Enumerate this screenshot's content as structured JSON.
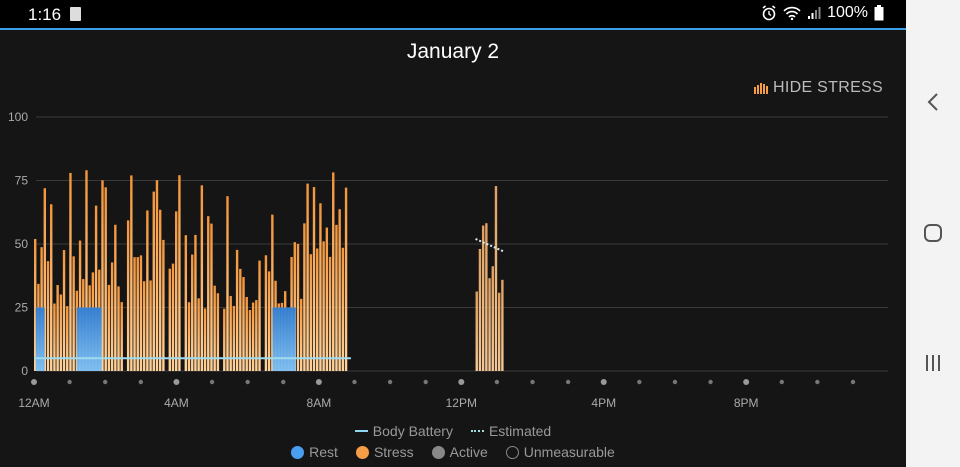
{
  "status_bar": {
    "time": "1:16",
    "battery": "100%"
  },
  "page": {
    "title": "January 2",
    "toggle_label": "HIDE STRESS"
  },
  "legend": {
    "row1": [
      {
        "label": "Body Battery",
        "color": "#8fd6f0",
        "style": "line"
      },
      {
        "label": "Estimated",
        "color": "#9be0e0",
        "style": "dotted"
      }
    ],
    "row2": [
      {
        "label": "Rest",
        "color": "#4a9ef0"
      },
      {
        "label": "Stress",
        "color": "#f59d47"
      },
      {
        "label": "Active",
        "color": "#888888"
      },
      {
        "label": "Unmeasurable",
        "color": "#151515"
      }
    ]
  },
  "chart_data": {
    "type": "bar",
    "x_range_hours": [
      0,
      23.5
    ],
    "ylim": [
      0,
      100
    ],
    "y_ticks": [
      0,
      25,
      50,
      75,
      100
    ],
    "x_tick_labels": [
      {
        "hour": 0,
        "label": "12AM"
      },
      {
        "hour": 4,
        "label": "4AM"
      },
      {
        "hour": 8,
        "label": "8AM"
      },
      {
        "hour": 12,
        "label": "12PM"
      },
      {
        "hour": 16,
        "label": "4PM"
      },
      {
        "hour": 20,
        "label": "8PM"
      }
    ],
    "stress_intervals": [
      {
        "start": 0.0,
        "end": 8.75,
        "level_min": 24,
        "level_max": 80
      },
      {
        "start": 12.4,
        "end": 13.2,
        "level_min": 30,
        "level_max": 75
      }
    ],
    "rest_intervals": [
      {
        "start": 0.05,
        "end": 0.3,
        "level": 25
      },
      {
        "start": 1.2,
        "end": 1.9,
        "level": 25
      },
      {
        "start": 6.7,
        "end": 7.35,
        "level": 25
      }
    ],
    "body_battery": [
      {
        "hour": 0.0,
        "value": 5
      },
      {
        "hour": 8.9,
        "value": 5
      }
    ],
    "body_battery_estimated": [
      {
        "hour": 12.4,
        "value": 52
      },
      {
        "hour": 13.2,
        "value": 47
      }
    ]
  }
}
